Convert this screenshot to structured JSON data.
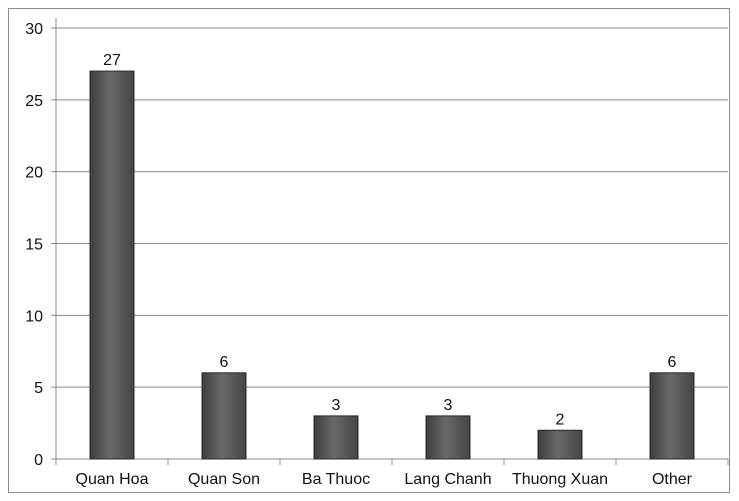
{
  "chart_data": {
    "type": "bar",
    "categories": [
      "Quan Hoa",
      "Quan Son",
      "Ba Thuoc",
      "Lang Chanh",
      "Thuong Xuan",
      "Other"
    ],
    "values": [
      27,
      6,
      3,
      3,
      2,
      6
    ],
    "data_labels": [
      "27",
      "6",
      "3",
      "3",
      "2",
      "6"
    ],
    "yticks": [
      "0",
      "5",
      "10",
      "15",
      "20",
      "25",
      "30"
    ],
    "ylim": [
      0,
      30
    ],
    "title": "",
    "xlabel": "",
    "ylabel": "",
    "grid": true,
    "legend": "none",
    "bar_color": "#5a5a5a",
    "grid_color": "#8c8c8c"
  }
}
